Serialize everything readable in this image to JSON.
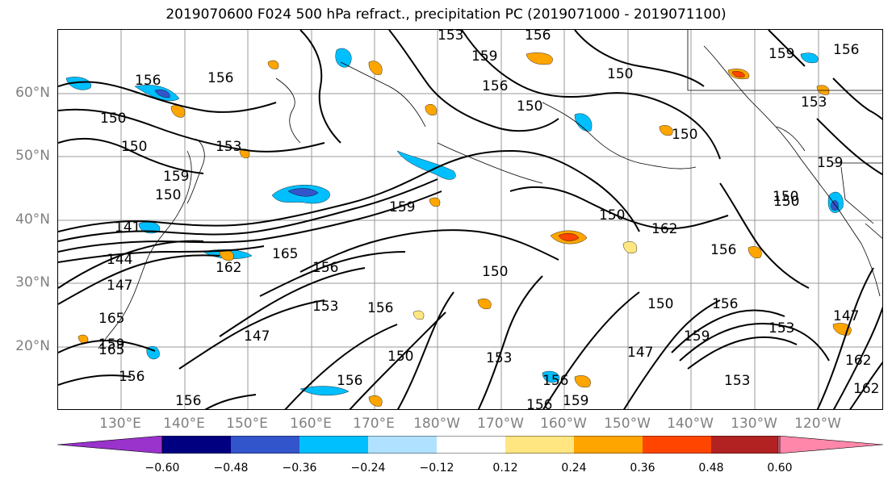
{
  "title": "2019070600 F024 500 hPa refract., precipitation PC (2019071000 - 2019071100)",
  "lat_labels": [
    "60°N",
    "50°N",
    "40°N",
    "30°N",
    "20°N"
  ],
  "lon_labels": [
    "130°E",
    "140°E",
    "150°E",
    "160°E",
    "170°E",
    "180°W",
    "170°W",
    "160°W",
    "150°W",
    "140°W",
    "130°W",
    "120°W"
  ],
  "contour_labels": [
    "153",
    "156",
    "159",
    "156",
    "150",
    "156",
    "159",
    "150",
    "156",
    "150",
    "153",
    "156",
    "150",
    "159",
    "153",
    "150",
    "159",
    "150",
    "159",
    "162",
    "156",
    "150",
    "165",
    "162",
    "156",
    "153",
    "156",
    "150",
    "147",
    "165",
    "159",
    "156",
    "150",
    "150",
    "147",
    "153",
    "156",
    "141",
    "156",
    "150",
    "147",
    "150",
    "153",
    "162",
    "162",
    "156",
    "159",
    "156",
    "153",
    "159",
    "156",
    "144",
    "147",
    "165"
  ],
  "colorbar": {
    "ticks": [
      "−0.60",
      "−0.48",
      "−0.36",
      "−0.24",
      "−0.12",
      "0.12",
      "0.24",
      "0.36",
      "0.48",
      "0.60"
    ],
    "colors": [
      "#9933cc",
      "#000080",
      "#3355cc",
      "#00bfff",
      "#b0e2ff",
      "#ffffff",
      "#ffe680",
      "#ffa500",
      "#ff4500",
      "#b22222",
      "#ff88aa"
    ]
  }
}
